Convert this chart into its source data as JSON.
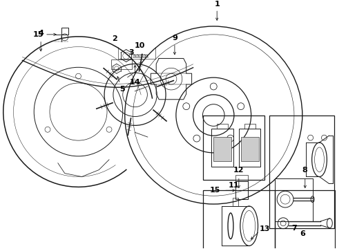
{
  "bg_color": "#ffffff",
  "line_color": "#1a1a1a",
  "text_color": "#000000",
  "fig_width": 4.89,
  "fig_height": 3.6,
  "dpi": 100
}
